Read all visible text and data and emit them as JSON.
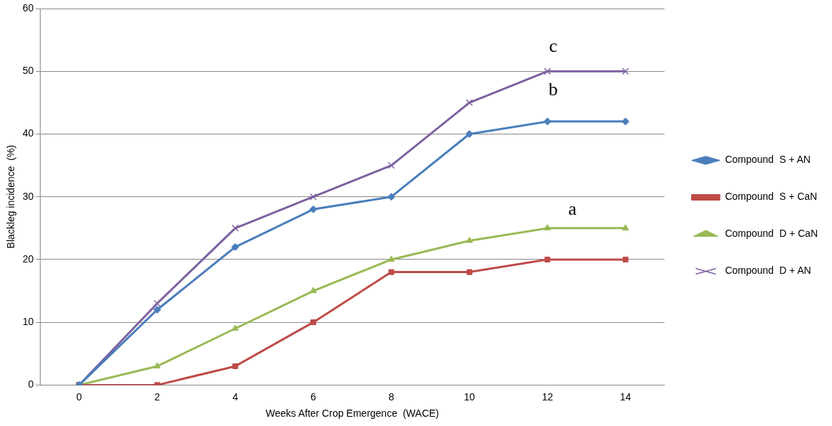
{
  "chart_data": {
    "type": "line",
    "xlabel": "Weeks After Crop Emergence  (WACE)",
    "ylabel": "Blackleg incidence  (%)",
    "categories": [
      "0",
      "2",
      "4",
      "6",
      "8",
      "10",
      "12",
      "14"
    ],
    "series": [
      {
        "name": "Compound  S + AN",
        "color": "#4a7ebb",
        "marker": "diamond",
        "values": [
          0,
          12,
          22,
          28,
          30,
          40,
          42,
          42
        ]
      },
      {
        "name": "Compound  S + CaN",
        "color": "#be4b48",
        "marker": "square",
        "values": [
          0,
          0,
          3,
          10,
          18,
          18,
          20,
          20
        ]
      },
      {
        "name": "Compound  D + CaN",
        "color": "#98b954",
        "marker": "triangle",
        "values": [
          0,
          3,
          9,
          15,
          20,
          23,
          25,
          25
        ]
      },
      {
        "name": "Compound  D + AN",
        "color": "#7d60a0",
        "marker": "cross",
        "values": [
          0,
          13,
          25,
          30,
          35,
          45,
          50,
          50
        ]
      }
    ],
    "annotations": [
      "c",
      "b",
      "a"
    ],
    "ylim": [
      0,
      60
    ],
    "yticks": [
      0,
      10,
      20,
      30,
      40,
      50,
      60
    ],
    "grid": "y",
    "legend": "right"
  }
}
